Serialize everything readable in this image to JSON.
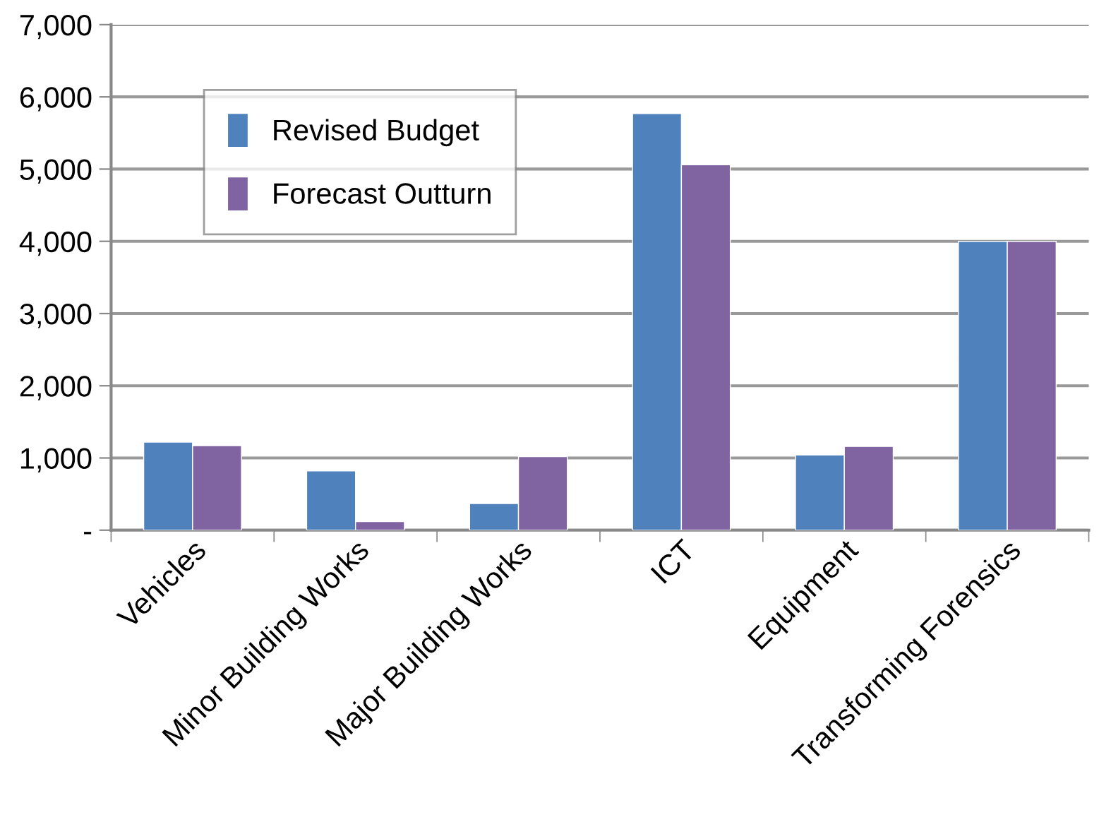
{
  "chart_data": {
    "type": "bar",
    "categories": [
      "Vehicles",
      "Minor Building Works",
      "Major Building Works",
      "ICT",
      "Equipment",
      "Transforming Forensics"
    ],
    "series": [
      {
        "name": "Revised Budget",
        "color": "#4f81bd",
        "values": [
          1220,
          820,
          370,
          5770,
          1040,
          4000
        ]
      },
      {
        "name": "Forecast Outturn",
        "color": "#8064a2",
        "values": [
          1170,
          120,
          1020,
          5060,
          1160,
          4000
        ]
      }
    ],
    "ylim": [
      0,
      7000
    ],
    "yticks": [
      {
        "value": 0,
        "label": "-"
      },
      {
        "value": 1000,
        "label": "1,000"
      },
      {
        "value": 2000,
        "label": "2,000"
      },
      {
        "value": 3000,
        "label": "3,000"
      },
      {
        "value": 4000,
        "label": "4,000"
      },
      {
        "value": 5000,
        "label": "5,000"
      },
      {
        "value": 6000,
        "label": "6,000"
      },
      {
        "value": 7000,
        "label": "7,000"
      }
    ],
    "grid": "y",
    "legend": "top left"
  }
}
